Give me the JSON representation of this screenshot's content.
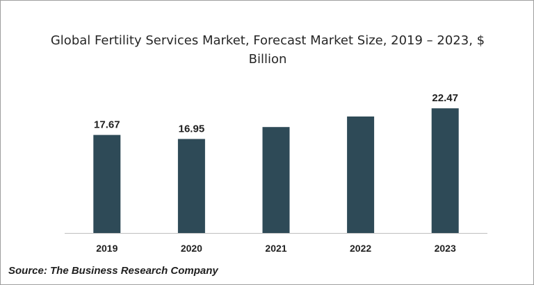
{
  "chart_data": {
    "type": "bar",
    "title": "Global Fertility Services Market, Forecast Market Size, 2019 – 2023, $ Billion",
    "categories": [
      "2019",
      "2020",
      "2021",
      "2022",
      "2023"
    ],
    "values": [
      17.67,
      16.95,
      19.1,
      21.0,
      22.47
    ],
    "data_labels": [
      "17.67",
      "16.95",
      "",
      "",
      "22.47"
    ],
    "ylim": [
      0,
      24
    ],
    "xlabel": "",
    "ylabel": "",
    "grid": false,
    "legend": "none",
    "bar_color": "#2e4a57",
    "axis_color": "#bfbfbf"
  },
  "footer": {
    "source": "Source: The Business Research Company"
  }
}
